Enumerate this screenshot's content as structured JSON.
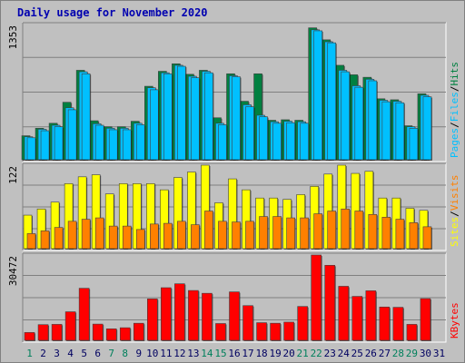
{
  "title": "Daily usage for November 2020",
  "colors": {
    "hits": "#008040",
    "files": "#00c0ff",
    "pages": "#00c0ff",
    "visits": "#ff8000",
    "sites": "#ffff00",
    "kbytes": "#ff0000",
    "weekend": "#00805c",
    "weekday": "#000060",
    "panel": "#c0c0c0"
  },
  "chart_data": [
    {
      "type": "bar",
      "title": "Daily usage for November 2020",
      "ylabel_parts": [
        "Pages",
        "Files",
        "Hits"
      ],
      "ymax_label": "1353",
      "ylim": [
        0,
        1353
      ],
      "categories": [
        "1",
        "2",
        "3",
        "4",
        "5",
        "6",
        "7",
        "8",
        "9",
        "10",
        "11",
        "12",
        "13",
        "14",
        "15",
        "16",
        "17",
        "18",
        "19",
        "20",
        "21",
        "22",
        "23",
        "24",
        "25",
        "26",
        "27",
        "28",
        "29",
        "30",
        "31"
      ],
      "series": [
        {
          "name": "Hits",
          "values": [
            240,
            315,
            365,
            575,
            895,
            390,
            330,
            330,
            385,
            735,
            885,
            960,
            855,
            895,
            420,
            860,
            585,
            860,
            395,
            400,
            395,
            1320,
            1200,
            945,
            850,
            825,
            610,
            600,
            340,
            660,
            0
          ]
        },
        {
          "name": "Files",
          "values": [
            230,
            305,
            345,
            520,
            880,
            360,
            315,
            315,
            365,
            720,
            870,
            945,
            835,
            885,
            365,
            840,
            550,
            445,
            380,
            385,
            380,
            1300,
            1180,
            895,
            740,
            805,
            595,
            585,
            330,
            645,
            0
          ]
        },
        {
          "name": "Pages",
          "values": [
            220,
            290,
            330,
            500,
            860,
            345,
            300,
            300,
            350,
            700,
            860,
            935,
            820,
            870,
            350,
            830,
            530,
            430,
            365,
            370,
            365,
            1290,
            1170,
            880,
            725,
            790,
            580,
            570,
            315,
            630,
            0
          ]
        }
      ]
    },
    {
      "type": "bar",
      "ylabel_parts": [
        "Sites",
        "Visits"
      ],
      "ymax_label": "122",
      "ylim": [
        0,
        122
      ],
      "categories": [
        "1",
        "2",
        "3",
        "4",
        "5",
        "6",
        "7",
        "8",
        "9",
        "10",
        "11",
        "12",
        "13",
        "14",
        "15",
        "16",
        "17",
        "18",
        "19",
        "20",
        "21",
        "22",
        "23",
        "24",
        "25",
        "26",
        "27",
        "28",
        "29",
        "30",
        "31"
      ],
      "series": [
        {
          "name": "Sites",
          "values": [
            49,
            58,
            68,
            95,
            105,
            108,
            80,
            95,
            95,
            95,
            86,
            104,
            112,
            124,
            67,
            102,
            86,
            74,
            74,
            72,
            79,
            91,
            109,
            127,
            110,
            113,
            74,
            74,
            59,
            56,
            0
          ]
        },
        {
          "name": "Visits",
          "values": [
            22,
            26,
            31,
            40,
            43,
            45,
            33,
            33,
            28,
            36,
            37,
            40,
            35,
            55,
            40,
            39,
            40,
            47,
            47,
            45,
            45,
            51,
            55,
            58,
            55,
            50,
            46,
            43,
            38,
            32,
            0
          ]
        }
      ]
    },
    {
      "type": "bar",
      "ylabel_parts": [
        "KBytes"
      ],
      "ymax_label": "30472",
      "ylim": [
        0,
        30472
      ],
      "categories": [
        "1",
        "2",
        "3",
        "4",
        "5",
        "6",
        "7",
        "8",
        "9",
        "10",
        "11",
        "12",
        "13",
        "14",
        "15",
        "16",
        "17",
        "18",
        "19",
        "20",
        "21",
        "22",
        "23",
        "24",
        "25",
        "26",
        "27",
        "28",
        "29",
        "30",
        "31"
      ],
      "series": [
        {
          "name": "KBytes",
          "values": [
            2800,
            5600,
            5700,
            10200,
            18600,
            5800,
            4100,
            4500,
            6100,
            14800,
            18800,
            20200,
            17800,
            16800,
            6000,
            17300,
            12400,
            6300,
            6100,
            6500,
            12100,
            31400,
            26800,
            19300,
            15700,
            17700,
            11900,
            11800,
            5700,
            14900,
            0
          ]
        }
      ]
    }
  ]
}
